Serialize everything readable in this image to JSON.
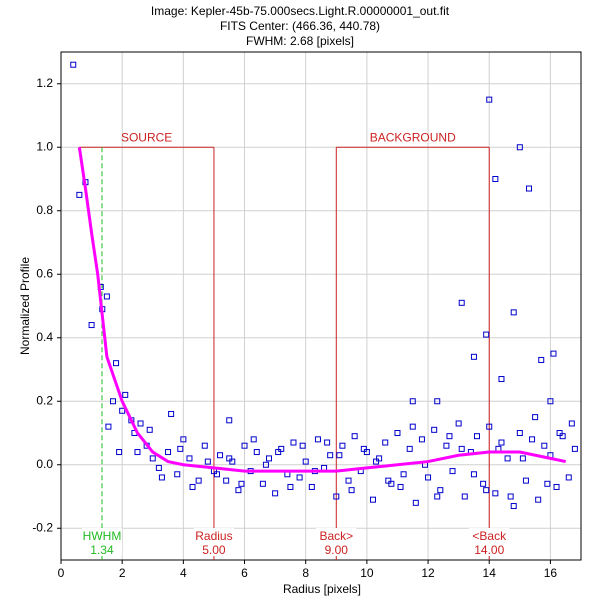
{
  "chart_data": {
    "type": "scatter",
    "title": [
      "Image: Kepler-45b-75.000secs.Light.R.00000001_out.fit",
      "FITS Center: (466.36,  440.78)",
      "FWHM: 2.68 [pixels]"
    ],
    "x_label": "Radius [pixels]",
    "y_label": "Normalized Profile",
    "xlim": [
      0,
      17
    ],
    "ylim": [
      -0.3,
      1.3
    ],
    "xticks": [
      0,
      2,
      4,
      6,
      8,
      10,
      12,
      14,
      16
    ],
    "yticks": [
      -0.2,
      {
        "value": 0,
        "label": "0.0"
      },
      0.2,
      0.4,
      0.6,
      0.8,
      {
        "value": 1,
        "label": "1.0"
      },
      1.2
    ],
    "grid": true,
    "points": {
      "color": "#0000cc",
      "x": [
        0.4,
        0.6,
        0.8,
        1.0,
        1.3,
        1.35,
        1.5,
        1.55,
        1.7,
        1.8,
        1.9,
        2.0,
        2.1,
        2.3,
        2.4,
        2.5,
        2.6,
        2.8,
        2.9,
        3.0,
        3.2,
        3.5,
        3.6,
        3.8,
        4.0,
        4.2,
        4.5,
        4.8,
        5.0,
        5.5,
        3.3,
        3.9,
        4.3,
        4.7,
        5.2,
        5.4,
        5.6,
        5.8,
        6.0,
        6.2,
        6.4,
        6.6,
        6.8,
        7.0,
        7.2,
        7.4,
        7.6,
        7.8,
        8.0,
        8.2,
        8.4,
        8.6,
        8.8,
        9.0,
        9.2,
        9.4,
        9.6,
        9.8,
        10.0,
        10.2,
        10.4,
        10.6,
        10.8,
        11.0,
        11.2,
        11.4,
        11.6,
        11.8,
        12.0,
        12.2,
        12.4,
        12.6,
        12.8,
        13.0,
        13.2,
        13.4,
        13.6,
        13.8,
        14.0,
        14.2,
        14.4,
        14.6,
        14.8,
        15.0,
        15.2,
        15.4,
        15.6,
        15.8,
        16.0,
        16.2,
        16.4,
        16.6,
        16.8,
        5.1,
        5.5,
        5.9,
        6.3,
        6.7,
        7.1,
        7.5,
        7.9,
        8.3,
        8.7,
        9.1,
        9.5,
        9.9,
        10.3,
        10.7,
        11.1,
        11.5,
        11.9,
        12.3,
        12.7,
        13.1,
        13.5,
        13.9,
        14.3,
        14.7,
        15.1,
        15.5,
        15.9,
        16.3,
        16.7,
        13.1,
        13.9,
        14.0,
        14.2,
        15.0,
        15.3,
        14.8,
        15.7,
        16.1,
        13.5,
        12.3,
        14.4,
        16.0,
        11.5
      ],
      "y": [
        1.26,
        0.85,
        0.89,
        0.44,
        0.56,
        0.49,
        0.53,
        0.12,
        0.2,
        0.32,
        0.04,
        0.17,
        0.22,
        0.14,
        0.1,
        0.04,
        0.13,
        0.06,
        0.11,
        0.02,
        -0.01,
        0.04,
        0.16,
        -0.03,
        0.08,
        0.02,
        -0.05,
        0.01,
        -0.02,
        0.14,
        -0.04,
        0.05,
        -0.07,
        0.06,
        0.03,
        -0.05,
        0.01,
        -0.08,
        0.06,
        -0.02,
        0.04,
        -0.06,
        0.02,
        -0.09,
        0.05,
        -0.03,
        0.07,
        -0.04,
        0.01,
        -0.07,
        0.08,
        -0.01,
        0.03,
        -0.1,
        0.06,
        -0.05,
        0.09,
        -0.02,
        0.04,
        -0.11,
        0.02,
        0.07,
        -0.06,
        0.1,
        -0.03,
        0.05,
        -0.12,
        0.08,
        -0.04,
        0.11,
        -0.08,
        0.06,
        -0.02,
        0.13,
        -0.1,
        0.04,
        0.09,
        -0.06,
        0.12,
        -0.09,
        0.07,
        0.02,
        -0.13,
        0.1,
        -0.05,
        0.08,
        -0.11,
        0.06,
        0.03,
        -0.07,
        0.09,
        -0.04,
        0.05,
        -0.03,
        0.02,
        -0.06,
        0.08,
        0.0,
        0.04,
        -0.07,
        0.06,
        -0.02,
        0.07,
        0.03,
        -0.08,
        0.05,
        0.01,
        -0.05,
        -0.07,
        0.12,
        0.0,
        -0.1,
        0.09,
        0.05,
        -0.03,
        -0.08,
        0.05,
        -0.1,
        0.02,
        0.15,
        -0.06,
        0.1,
        0.13,
        0.51,
        0.41,
        1.15,
        0.9,
        1.0,
        0.87,
        0.48,
        0.33,
        0.35,
        0.34,
        0.2,
        0.27,
        0.2,
        0.2
      ]
    },
    "fit": {
      "color": "#ff00ff",
      "x": [
        0.6,
        0.8,
        1.0,
        1.2,
        1.5,
        2.0,
        2.5,
        3.0,
        3.5,
        4,
        5,
        6,
        7,
        8,
        9,
        10,
        11,
        12,
        13,
        14,
        15,
        16,
        16.5
      ],
      "y": [
        1.0,
        0.87,
        0.73,
        0.6,
        0.34,
        0.2,
        0.1,
        0.04,
        0.01,
        0,
        -0.01,
        -0.02,
        -0.02,
        -0.02,
        -0.02,
        -0.01,
        0.0,
        0.01,
        0.03,
        0.04,
        0.04,
        0.02,
        0.01
      ]
    },
    "regions": [
      {
        "label": "SOURCE",
        "x": [
          0.6,
          5
        ],
        "level": 1
      },
      {
        "label": "BACKGROUND",
        "x": [
          9,
          14
        ],
        "level": 1
      }
    ],
    "markers": [
      {
        "name": "HWHM",
        "x": 1.34,
        "color": "#22bb22",
        "dashed": true
      },
      {
        "name": "Radius",
        "x": {
          "value": 5,
          "label": "5.00"
        },
        "color": "#cc2222",
        "dashed": false
      },
      {
        "name": "Back>",
        "x": {
          "value": 9,
          "label": "9.00"
        },
        "color": "#cc2222",
        "dashed": false
      },
      {
        "name": "<Back",
        "x": {
          "value": 14,
          "label": "14.00"
        },
        "color": "#cc2222",
        "dashed": false
      }
    ]
  }
}
